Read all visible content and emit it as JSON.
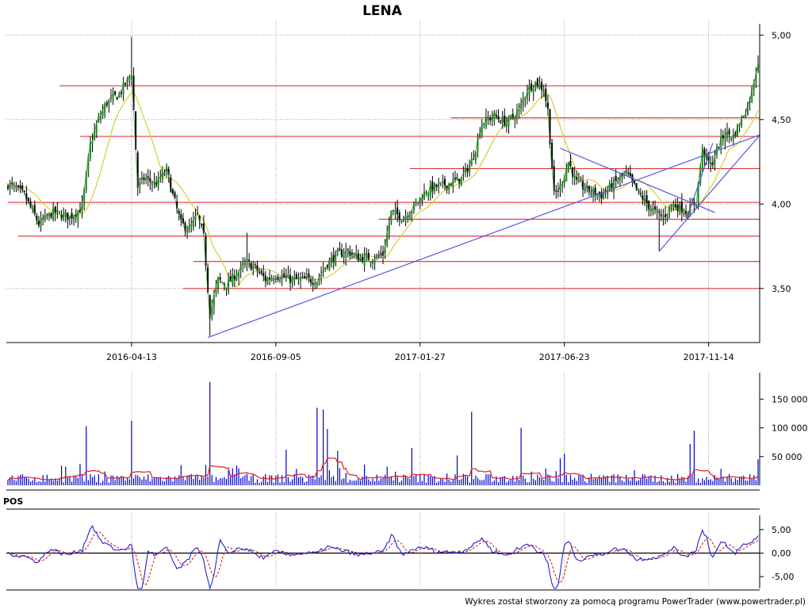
{
  "chart_data": {
    "type": "candlestick",
    "title": "LENA",
    "footer": "Wykres został stworzony za pomocą programu PowerTrader (www.powertrader.pl)",
    "price_panel": {
      "ylim": [
        3.18,
        5.02
      ],
      "y_ticks": [
        {
          "value": 3.5,
          "label": "3,50"
        },
        {
          "value": 4.0,
          "label": "4,00"
        },
        {
          "value": 4.5,
          "label": "4,50"
        },
        {
          "value": 5.0,
          "label": "5,00"
        }
      ],
      "x_ticks": [
        {
          "index": 60,
          "label": "2016-04-13"
        },
        {
          "index": 130,
          "label": "2016-09-05"
        },
        {
          "index": 200,
          "label": "2017-01-27"
        },
        {
          "index": 270,
          "label": "2017-06-23"
        },
        {
          "index": 340,
          "label": "2017-11-14"
        }
      ],
      "n_sessions": 365,
      "close_path": [
        [
          0,
          4.12
        ],
        [
          8,
          4.05
        ],
        [
          15,
          3.88
        ],
        [
          22,
          3.95
        ],
        [
          30,
          3.92
        ],
        [
          36,
          3.98
        ],
        [
          40,
          4.35
        ],
        [
          44,
          4.5
        ],
        [
          48,
          4.6
        ],
        [
          54,
          4.65
        ],
        [
          58,
          4.73
        ],
        [
          60,
          4.78
        ],
        [
          63,
          4.1
        ],
        [
          66,
          4.15
        ],
        [
          72,
          4.12
        ],
        [
          77,
          4.2
        ],
        [
          80,
          4.05
        ],
        [
          84,
          3.88
        ],
        [
          88,
          3.85
        ],
        [
          92,
          3.93
        ],
        [
          95,
          3.8
        ],
        [
          98,
          3.35
        ],
        [
          102,
          3.55
        ],
        [
          106,
          3.52
        ],
        [
          112,
          3.6
        ],
        [
          116,
          3.65
        ],
        [
          120,
          3.62
        ],
        [
          125,
          3.55
        ],
        [
          130,
          3.58
        ],
        [
          138,
          3.55
        ],
        [
          145,
          3.55
        ],
        [
          150,
          3.55
        ],
        [
          155,
          3.65
        ],
        [
          160,
          3.7
        ],
        [
          165,
          3.72
        ],
        [
          170,
          3.68
        ],
        [
          177,
          3.68
        ],
        [
          182,
          3.7
        ],
        [
          186,
          3.95
        ],
        [
          192,
          3.92
        ],
        [
          198,
          4.0
        ],
        [
          203,
          4.08
        ],
        [
          208,
          4.1
        ],
        [
          214,
          4.12
        ],
        [
          220,
          4.15
        ],
        [
          225,
          4.25
        ],
        [
          230,
          4.48
        ],
        [
          236,
          4.52
        ],
        [
          242,
          4.48
        ],
        [
          248,
          4.55
        ],
        [
          252,
          4.68
        ],
        [
          256,
          4.72
        ],
        [
          260,
          4.68
        ],
        [
          262,
          4.55
        ],
        [
          265,
          4.05
        ],
        [
          268,
          4.1
        ],
        [
          272,
          4.25
        ],
        [
          276,
          4.12
        ],
        [
          282,
          4.08
        ],
        [
          288,
          4.05
        ],
        [
          294,
          4.12
        ],
        [
          300,
          4.18
        ],
        [
          305,
          4.08
        ],
        [
          310,
          4.0
        ],
        [
          314,
          3.95
        ],
        [
          318,
          3.92
        ],
        [
          322,
          4.0
        ],
        [
          326,
          3.98
        ],
        [
          330,
          3.95
        ],
        [
          334,
          4.02
        ],
        [
          337,
          4.32
        ],
        [
          341,
          4.22
        ],
        [
          345,
          4.35
        ],
        [
          348,
          4.42
        ],
        [
          352,
          4.4
        ],
        [
          356,
          4.5
        ],
        [
          360,
          4.62
        ],
        [
          364,
          4.85
        ]
      ],
      "sma": {
        "color": "#d4cd3a",
        "period": 15
      },
      "candle_color": "#1f8a1f",
      "support_resistance_levels": [
        {
          "value": 4.7,
          "from": 25
        },
        {
          "value": 4.51,
          "from": 215
        },
        {
          "value": 4.4,
          "from": 35
        },
        {
          "value": 4.21,
          "from": 195
        },
        {
          "value": 4.01,
          "from": 0
        },
        {
          "value": 3.91,
          "from": 180
        },
        {
          "value": 3.81,
          "from": 5
        },
        {
          "value": 3.66,
          "from": 90
        },
        {
          "value": 3.5,
          "from": 85
        }
      ],
      "level_color": "#e03c3c",
      "trendlines": [
        {
          "x1": 97,
          "y1": 3.21,
          "x2": 365,
          "y2": 4.41
        },
        {
          "x1": 268,
          "y1": 4.33,
          "x2": 343,
          "y2": 3.95
        },
        {
          "x1": 316,
          "y1": 3.72,
          "x2": 365,
          "y2": 4.41
        },
        {
          "x1": 329,
          "y1": 3.9,
          "x2": 342,
          "y2": 4.36
        }
      ],
      "trendline_color": "#5555dd"
    },
    "volume_panel": {
      "ylim": [
        0,
        185000
      ],
      "y_ticks": [
        {
          "value": 50000,
          "label": "50 000"
        },
        {
          "value": 100000,
          "label": "100 000"
        },
        {
          "value": 150000,
          "label": "150 000"
        }
      ],
      "bar_color": "#0000cc",
      "ma_color": "#dd2222",
      "spikes": [
        {
          "index": 38,
          "value": 103000
        },
        {
          "index": 60,
          "value": 112000
        },
        {
          "index": 98,
          "value": 180000
        },
        {
          "index": 150,
          "value": 135000
        },
        {
          "index": 153,
          "value": 132000
        },
        {
          "index": 155,
          "value": 98000
        },
        {
          "index": 135,
          "value": 62000
        },
        {
          "index": 160,
          "value": 60000
        },
        {
          "index": 225,
          "value": 128000
        },
        {
          "index": 249,
          "value": 100000
        },
        {
          "index": 196,
          "value": 65000
        },
        {
          "index": 333,
          "value": 95000
        },
        {
          "index": 331,
          "value": 72000
        },
        {
          "index": 270,
          "value": 55000
        },
        {
          "index": 218,
          "value": 52000
        }
      ]
    },
    "oscillator_panel": {
      "label": "POS",
      "ylim": [
        -7.5,
        8.0
      ],
      "y_ticks": [
        {
          "value": 5.0,
          "label": "5,00"
        },
        {
          "value": 0.0,
          "label": "0,00"
        },
        {
          "value": -5.0,
          "label": "-5,00"
        }
      ],
      "line_color": "#2222cc",
      "signal_color": "#dd2222",
      "zero_color": "#000000"
    },
    "grid": true,
    "grid_style": "dotted"
  }
}
